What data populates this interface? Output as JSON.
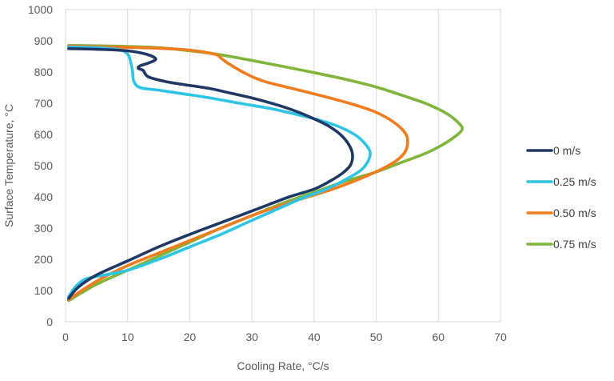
{
  "chart_data": {
    "type": "line",
    "title": "",
    "xlabel": "Cooling Rate, °C/s",
    "ylabel": "Surface Temperature, °C",
    "xlim": [
      0,
      70
    ],
    "ylim": [
      0,
      1000
    ],
    "x_ticks": [
      "0",
      "10",
      "20",
      "30",
      "40",
      "50",
      "60",
      "70"
    ],
    "y_ticks": [
      "0",
      "100",
      "200",
      "300",
      "400",
      "500",
      "600",
      "700",
      "800",
      "900",
      "1000"
    ],
    "grid": "vertical",
    "legend": "right",
    "series": [
      {
        "name": "0 m/s",
        "color": "#1f3864",
        "points": [
          [
            0.5,
            875
          ],
          [
            5,
            873
          ],
          [
            10,
            868
          ],
          [
            13,
            857
          ],
          [
            14.5,
            842
          ],
          [
            13.5,
            830
          ],
          [
            12,
            820
          ],
          [
            11.7,
            812
          ],
          [
            12.5,
            805
          ],
          [
            13.3,
            785
          ],
          [
            16,
            770
          ],
          [
            19,
            760
          ],
          [
            23,
            748
          ],
          [
            26,
            735
          ],
          [
            30,
            717
          ],
          [
            34,
            695
          ],
          [
            37,
            675
          ],
          [
            40,
            650
          ],
          [
            42.5,
            625
          ],
          [
            44.5,
            595
          ],
          [
            45.8,
            560
          ],
          [
            46.2,
            530
          ],
          [
            45.8,
            500
          ],
          [
            44.5,
            475
          ],
          [
            42.5,
            450
          ],
          [
            40,
            425
          ],
          [
            36,
            400
          ],
          [
            32,
            370
          ],
          [
            28,
            340
          ],
          [
            24,
            310
          ],
          [
            20,
            280
          ],
          [
            15,
            240
          ],
          [
            10,
            195
          ],
          [
            5,
            150
          ],
          [
            2,
            110
          ],
          [
            0.5,
            75
          ]
        ]
      },
      {
        "name": "0.25 m/s",
        "color": "#2ec4e6",
        "points": [
          [
            0.5,
            880
          ],
          [
            5,
            878
          ],
          [
            8.5,
            872
          ],
          [
            10,
            857
          ],
          [
            10.5,
            830
          ],
          [
            10.8,
            800
          ],
          [
            11,
            770
          ],
          [
            12,
            750
          ],
          [
            15,
            742
          ],
          [
            19,
            730
          ],
          [
            23,
            718
          ],
          [
            28,
            700
          ],
          [
            33,
            683
          ],
          [
            37,
            665
          ],
          [
            41,
            645
          ],
          [
            44,
            625
          ],
          [
            46.5,
            600
          ],
          [
            48,
            575
          ],
          [
            49,
            545
          ],
          [
            48.7,
            515
          ],
          [
            47.5,
            485
          ],
          [
            45,
            455
          ],
          [
            42,
            425
          ],
          [
            38,
            395
          ],
          [
            34,
            360
          ],
          [
            30,
            325
          ],
          [
            25,
            280
          ],
          [
            20,
            240
          ],
          [
            15,
            200
          ],
          [
            10,
            165
          ],
          [
            5,
            145
          ],
          [
            3,
            135
          ],
          [
            1.5,
            110
          ],
          [
            0.5,
            80
          ]
        ]
      },
      {
        "name": "0.50 m/s",
        "color": "#f07c1e",
        "points": [
          [
            0.5,
            883
          ],
          [
            5,
            881
          ],
          [
            10,
            879
          ],
          [
            15,
            876
          ],
          [
            20,
            870
          ],
          [
            24,
            857
          ],
          [
            25,
            845
          ],
          [
            26,
            830
          ],
          [
            29,
            795
          ],
          [
            32,
            770
          ],
          [
            37,
            745
          ],
          [
            42,
            720
          ],
          [
            46,
            698
          ],
          [
            49.5,
            675
          ],
          [
            52,
            650
          ],
          [
            54,
            620
          ],
          [
            55,
            590
          ],
          [
            54.8,
            550
          ],
          [
            53.5,
            520
          ],
          [
            51,
            490
          ],
          [
            47,
            455
          ],
          [
            43,
            425
          ],
          [
            39,
            400
          ],
          [
            35,
            375
          ],
          [
            30,
            340
          ],
          [
            25,
            300
          ],
          [
            20,
            260
          ],
          [
            15,
            220
          ],
          [
            10,
            180
          ],
          [
            5,
            130
          ],
          [
            0.5,
            72
          ]
        ]
      },
      {
        "name": "0.75 m/s",
        "color": "#7fb53b",
        "points": [
          [
            0.5,
            885
          ],
          [
            5,
            884
          ],
          [
            10,
            882
          ],
          [
            15,
            878
          ],
          [
            20,
            868
          ],
          [
            25,
            855
          ],
          [
            30,
            837
          ],
          [
            35,
            818
          ],
          [
            40,
            798
          ],
          [
            45,
            777
          ],
          [
            50,
            752
          ],
          [
            55,
            720
          ],
          [
            58.5,
            695
          ],
          [
            61.5,
            665
          ],
          [
            63.5,
            632
          ],
          [
            63.8,
            615
          ],
          [
            62.8,
            595
          ],
          [
            60.5,
            565
          ],
          [
            58,
            540
          ],
          [
            54,
            510
          ],
          [
            50,
            480
          ],
          [
            45,
            450
          ],
          [
            40,
            415
          ],
          [
            35,
            380
          ],
          [
            30,
            340
          ],
          [
            25,
            300
          ],
          [
            20,
            255
          ],
          [
            15,
            210
          ],
          [
            10,
            165
          ],
          [
            5,
            120
          ],
          [
            0.5,
            68
          ]
        ]
      }
    ]
  }
}
